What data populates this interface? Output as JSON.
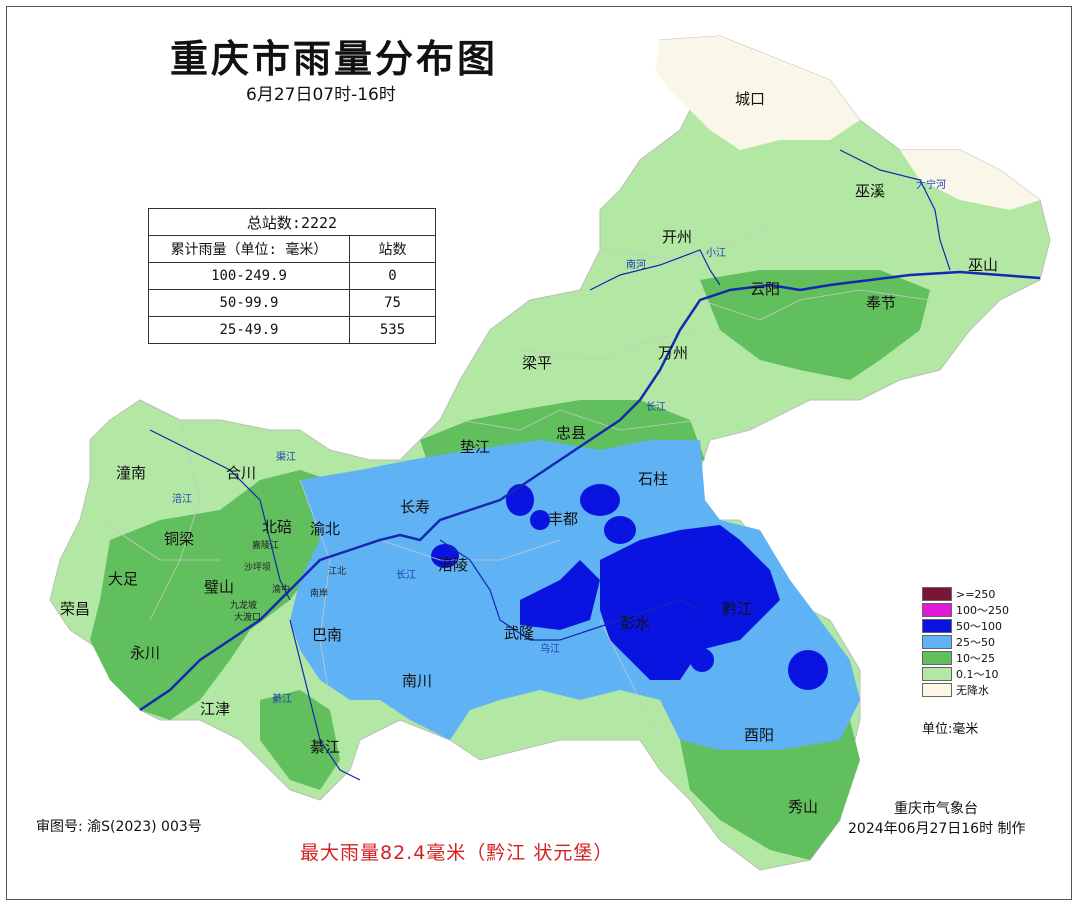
{
  "title": "重庆市雨量分布图",
  "subtitle": "6月27日07时-16时",
  "stats_table": {
    "total": "总站数:2222",
    "col_rain": "累计雨量（单位: 毫米）",
    "col_stations": "站数",
    "rows": [
      {
        "range": "100-249.9",
        "count": "0"
      },
      {
        "range": "50-99.9",
        "count": "75"
      },
      {
        "range": "25-49.9",
        "count": "535"
      }
    ]
  },
  "legend": {
    "items": [
      {
        "label": ">=250",
        "color": "#7a1535"
      },
      {
        "label": "100～250",
        "color": "#e01ad8"
      },
      {
        "label": "50～100",
        "color": "#0a14e0"
      },
      {
        "label": "25～50",
        "color": "#5fb2f3"
      },
      {
        "label": "10～25",
        "color": "#62bf5e"
      },
      {
        "label": "0.1～10",
        "color": "#b3e7a4"
      },
      {
        "label": "无降水",
        "color": "#fbf7e8"
      }
    ],
    "unit": "单位:毫米"
  },
  "districts": {
    "chengkou": "城口",
    "wuxi": "巫溪",
    "kaizhou": "开州",
    "yunyang": "云阳",
    "wushan": "巫山",
    "fengjie": "奉节",
    "liangping": "梁平",
    "wanzhou": "万州",
    "dianjiang": "垫江",
    "zhongxian": "忠县",
    "shizhu": "石柱",
    "changshou": "长寿",
    "fengdu": "丰都",
    "tongnan": "潼南",
    "hechuan": "合川",
    "beibei": "北碚",
    "yubei": "渝北",
    "tongliang": "铜梁",
    "dazu": "大足",
    "bishan": "璧山",
    "rongchang": "荣昌",
    "yongchuan": "永川",
    "banan": "巴南",
    "fuling": "涪陵",
    "wulong": "武隆",
    "pengshui": "彭水",
    "qianjiang": "黔江",
    "nanchuan": "南川",
    "jiangjin": "江津",
    "qijiang": "綦江",
    "youyang": "酉阳",
    "xiushan": "秀山"
  },
  "small_labels": {
    "jialingjiang": "嘉陵江",
    "shapingba": "沙坪坝",
    "yuzhong": "渝中",
    "jiulongpo": "九龙坡",
    "dadukou": "大渡口",
    "jiangbei": "江北",
    "nanan": "南岸"
  },
  "rivers": {
    "daning": "大宁河",
    "nanhe": "南河",
    "xiaojiang": "小江",
    "changjiang_a": "长江",
    "changjiang_b": "长江",
    "fujiang": "涪江",
    "qujiang": "渠江",
    "wujiang": "乌江",
    "qijiang_r": "綦江"
  },
  "approval": "审图号: 渝S(2023) 003号",
  "max_rain": "最大雨量82.4毫米（黔江 状元堡）",
  "organization": "重庆市气象台",
  "made": "2024年06月27日16时 制作"
}
